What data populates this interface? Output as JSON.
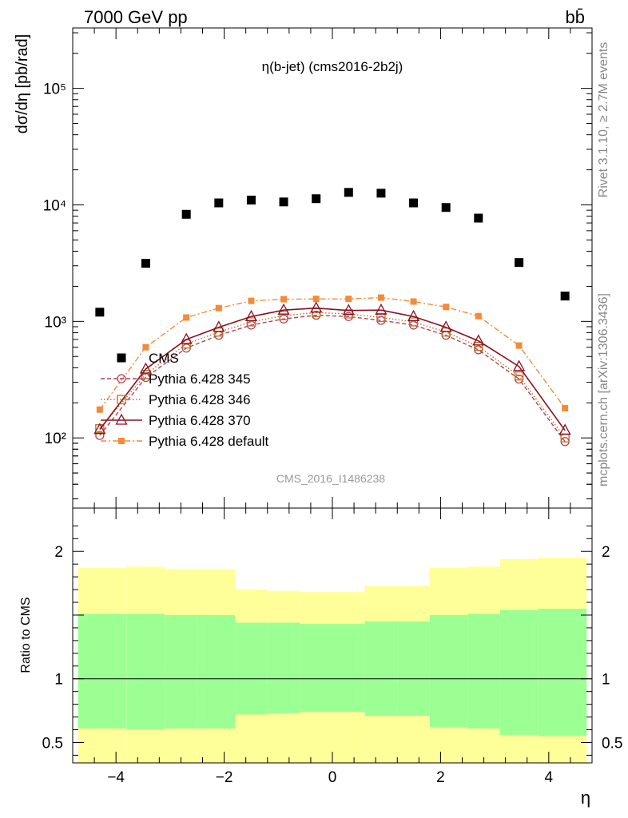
{
  "header": {
    "left": "7000 GeV pp",
    "right": "bb̄"
  },
  "side_labels": {
    "rivet": "Rivet 3.1.10, ≥ 2.7M events",
    "mcplots": "mcplots.cern.ch [arXiv:1306.3436]"
  },
  "chart_data": [
    {
      "type": "scatter",
      "title": "η(b-jet) (cms2016-2b2j)",
      "ylabel": "dσ/dη [pb/rad]",
      "watermark": "CMS_2016_I1486238",
      "yscale": "log",
      "xlim": [
        -4.8,
        4.8
      ],
      "ylim": [
        25,
        330000
      ],
      "y_ticks": [
        {
          "value": 100,
          "label": "10²"
        },
        {
          "value": 1000,
          "label": "10³"
        },
        {
          "value": 10000,
          "label": "10⁴"
        },
        {
          "value": 100000,
          "label": "10⁵"
        }
      ],
      "legend_position": "left",
      "x": [
        -4.3,
        -3.45,
        -2.7,
        -2.1,
        -1.5,
        -0.9,
        -0.3,
        0.3,
        0.9,
        1.5,
        2.1,
        2.7,
        3.45,
        4.3
      ],
      "series": [
        {
          "name": "CMS",
          "color": "#000000",
          "marker": "filled-square",
          "values": [
            1200,
            3150,
            8300,
            10400,
            11000,
            10600,
            11300,
            12800,
            12600,
            10400,
            9500,
            7700,
            3200,
            1650
          ]
        },
        {
          "name": "Pythia 6.428 345",
          "color": "#b5415a",
          "marker": "open-circle",
          "dash": "dashed",
          "values": [
            105,
            330,
            590,
            760,
            930,
            1050,
            1130,
            1100,
            1020,
            930,
            760,
            570,
            320,
            93
          ]
        },
        {
          "name": "Pythia 6.428 346",
          "color": "#b4761c",
          "marker": "open-square",
          "dash": "dotted",
          "values": [
            120,
            350,
            640,
            810,
            990,
            1120,
            1190,
            1160,
            1080,
            990,
            810,
            610,
            340,
            100
          ]
        },
        {
          "name": "Pythia 6.428 370",
          "color": "#8b1020",
          "marker": "open-triangle",
          "dash": "solid",
          "values": [
            118,
            390,
            700,
            890,
            1100,
            1250,
            1300,
            1240,
            1250,
            1100,
            890,
            680,
            410,
            116
          ]
        },
        {
          "name": "Pythia 6.428 default",
          "color": "#f38b3a",
          "marker": "filled-square-small",
          "dash": "dashdot",
          "values": [
            175,
            600,
            1080,
            1300,
            1500,
            1550,
            1560,
            1560,
            1600,
            1480,
            1330,
            1110,
            620,
            180
          ]
        }
      ]
    },
    {
      "type": "area",
      "ylabel": "Ratio to CMS",
      "xlabel": "η",
      "xlim": [
        -4.8,
        4.8
      ],
      "ylim": [
        0.34,
        2.34
      ],
      "x_ticks": [
        -4,
        -2,
        0,
        2,
        4
      ],
      "x_tick_labels": [
        "−4",
        "−2",
        "0",
        "2",
        "4"
      ],
      "y_ticks": [
        0.5,
        1,
        2
      ],
      "y_tick_labels": [
        "0.5",
        "1",
        "2"
      ],
      "reference_line": 1,
      "bins": [
        -4.7,
        -3.8,
        -3.1,
        -2.5,
        -1.8,
        -1.2,
        -0.6,
        0.0,
        0.6,
        1.2,
        1.8,
        2.5,
        3.1,
        3.8,
        4.7
      ],
      "band_inner_color": "#9cff94",
      "band_outer_color": "#ffff99",
      "inner_band": {
        "lower": [
          0.61,
          0.6,
          0.61,
          0.61,
          0.72,
          0.73,
          0.74,
          0.74,
          0.71,
          0.71,
          0.62,
          0.61,
          0.56,
          0.55
        ],
        "upper": [
          1.51,
          1.51,
          1.5,
          1.5,
          1.44,
          1.44,
          1.43,
          1.43,
          1.45,
          1.45,
          1.5,
          1.51,
          1.54,
          1.55
        ]
      },
      "outer_band": {
        "lower": [
          0.34,
          0.34,
          0.34,
          0.34,
          0.34,
          0.34,
          0.34,
          0.34,
          0.34,
          0.34,
          0.34,
          0.34,
          0.34,
          0.34
        ],
        "upper": [
          1.87,
          1.88,
          1.86,
          1.86,
          1.7,
          1.69,
          1.68,
          1.68,
          1.73,
          1.73,
          1.87,
          1.88,
          1.94,
          1.95
        ]
      }
    }
  ]
}
